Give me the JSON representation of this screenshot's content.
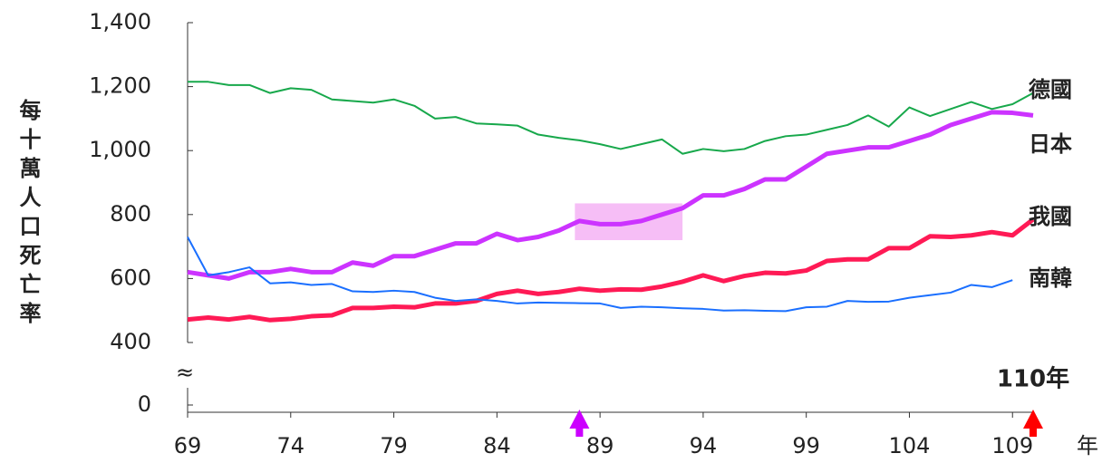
{
  "chart_data": {
    "type": "line",
    "y_label": "每十萬人口死亡率",
    "x_unit_label": "年",
    "x": [
      69,
      70,
      71,
      72,
      73,
      74,
      75,
      76,
      77,
      78,
      79,
      80,
      81,
      82,
      83,
      84,
      85,
      86,
      87,
      88,
      89,
      90,
      91,
      92,
      93,
      94,
      95,
      96,
      97,
      98,
      99,
      100,
      101,
      102,
      103,
      104,
      105,
      106,
      107,
      108,
      109,
      110
    ],
    "xlim": [
      69,
      110
    ],
    "xticks": [
      69,
      74,
      79,
      84,
      89,
      94,
      99,
      104,
      109
    ],
    "ylim": [
      400,
      1400
    ],
    "yticks": [
      0,
      {
        "value": 400,
        "label": "400"
      },
      600,
      800,
      {
        "value": 1000,
        "label": "1,000"
      },
      {
        "value": 1200,
        "label": "1,200"
      },
      {
        "value": 1400,
        "label": "1,400"
      }
    ],
    "axis_break_label": "≈",
    "series": [
      {
        "name": "德國",
        "color": "#17a84b",
        "width": 2,
        "values": [
          1215,
          1215,
          1205,
          1205,
          1180,
          1195,
          1190,
          1160,
          1155,
          1150,
          1160,
          1140,
          1100,
          1105,
          1085,
          1082,
          1078,
          1050,
          1040,
          1032,
          1020,
          1005,
          1020,
          1035,
          990,
          1005,
          998,
          1005,
          1030,
          1045,
          1050,
          1065,
          1080,
          1110,
          1075,
          1135,
          1108,
          1130,
          1152,
          1130,
          1145,
          1180
        ]
      },
      {
        "name": "日本",
        "color": "#cc33ff",
        "width": 5,
        "values": [
          620,
          610,
          600,
          620,
          620,
          630,
          620,
          620,
          650,
          640,
          670,
          670,
          690,
          710,
          710,
          740,
          720,
          730,
          750,
          780,
          770,
          770,
          780,
          800,
          820,
          860,
          860,
          880,
          910,
          910,
          950,
          990,
          1000,
          1010,
          1010,
          1030,
          1050,
          1080,
          1100,
          1120,
          1118,
          1110
        ]
      },
      {
        "name": "我國",
        "color": "#ff1a55",
        "width": 5,
        "values": [
          472,
          478,
          472,
          480,
          470,
          474,
          482,
          485,
          508,
          508,
          512,
          510,
          522,
          522,
          530,
          552,
          562,
          552,
          558,
          568,
          562,
          566,
          565,
          575,
          590,
          610,
          592,
          608,
          618,
          616,
          625,
          655,
          660,
          660,
          695,
          695,
          732,
          730,
          735,
          745,
          735,
          785
        ]
      },
      {
        "name": "南韓",
        "color": "#1a6fff",
        "width": 2,
        "values": [
          730,
          610,
          620,
          635,
          585,
          588,
          580,
          583,
          560,
          558,
          562,
          558,
          540,
          530,
          535,
          530,
          522,
          525,
          524,
          523,
          522,
          508,
          512,
          510,
          507,
          505,
          500,
          501,
          499,
          498,
          510,
          512,
          530,
          527,
          528,
          540,
          548,
          556,
          580,
          573,
          595,
          null
        ]
      }
    ],
    "highlight": {
      "x": [
        88,
        93
      ],
      "y": [
        720,
        835
      ],
      "color": "#f4b3f4"
    },
    "markers": [
      {
        "x": 88,
        "color": "#cc00ff"
      },
      {
        "x": 110,
        "color": "#ff0000",
        "label": "110年"
      }
    ]
  }
}
